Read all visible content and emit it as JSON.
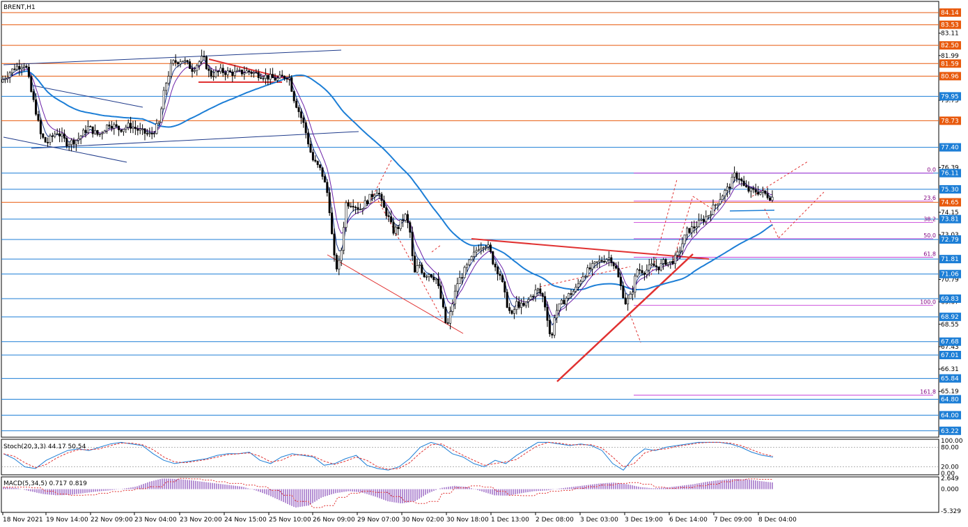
{
  "chart_data": {
    "type": "candlestick",
    "symbol_label": "BRENT,H1",
    "y_axis": {
      "range": [
        62.9,
        84.7
      ],
      "ticks": [
        "84.14",
        "83.53",
        "83.11",
        "82.50",
        "81.99",
        "81.59",
        "80.96",
        "79.95",
        "79.75",
        "78.73",
        "77.40",
        "76.39",
        "76.11",
        "75.30",
        "74.65",
        "74.15",
        "73.81",
        "73.03",
        "72.79",
        "71.81",
        "71.06",
        "70.79",
        "69.83",
        "69.67",
        "68.92",
        "68.55",
        "67.68",
        "67.43",
        "67.01",
        "66.31",
        "65.84",
        "65.19",
        "64.80",
        "64.00",
        "63.22"
      ],
      "tick_values": [
        84.14,
        83.53,
        83.11,
        82.5,
        81.99,
        81.59,
        80.96,
        79.95,
        79.75,
        78.73,
        77.4,
        76.39,
        76.11,
        75.3,
        74.65,
        74.15,
        73.81,
        73.03,
        72.79,
        71.81,
        71.06,
        70.79,
        69.83,
        69.67,
        68.92,
        68.55,
        67.68,
        67.43,
        67.01,
        66.31,
        65.84,
        65.19,
        64.8,
        64.0,
        63.22
      ],
      "highlighted": [
        {
          "label": "84.14",
          "value": 84.14,
          "color": "#e8590c"
        },
        {
          "label": "83.53",
          "value": 83.53,
          "color": "#e8590c"
        },
        {
          "label": "82.50",
          "value": 82.5,
          "color": "#e8590c"
        },
        {
          "label": "81.59",
          "value": 81.59,
          "color": "#e8590c"
        },
        {
          "label": "80.96",
          "value": 80.96,
          "color": "#e8590c"
        },
        {
          "label": "79.95",
          "value": 79.95,
          "color": "#1c7ed6"
        },
        {
          "label": "78.73",
          "value": 78.73,
          "color": "#e8590c"
        },
        {
          "label": "77.40",
          "value": 77.4,
          "color": "#1c7ed6"
        },
        {
          "label": "76.11",
          "value": 76.11,
          "color": "#1c7ed6"
        },
        {
          "label": "75.30",
          "value": 75.3,
          "color": "#1c7ed6"
        },
        {
          "label": "74.65",
          "value": 74.65,
          "color": "#e8590c"
        },
        {
          "label": "73.81",
          "value": 73.81,
          "color": "#1c7ed6"
        },
        {
          "label": "72.79",
          "value": 72.79,
          "color": "#1c7ed6"
        },
        {
          "label": "71.81",
          "value": 71.81,
          "color": "#1c7ed6"
        },
        {
          "label": "71.06",
          "value": 71.06,
          "color": "#1c7ed6"
        },
        {
          "label": "69.83",
          "value": 69.83,
          "color": "#1c7ed6"
        },
        {
          "label": "68.92",
          "value": 68.92,
          "color": "#1c7ed6"
        },
        {
          "label": "67.68",
          "value": 67.68,
          "color": "#1c7ed6"
        },
        {
          "label": "67.01",
          "value": 67.01,
          "color": "#1c7ed6"
        },
        {
          "label": "65.84",
          "value": 65.84,
          "color": "#1c7ed6"
        },
        {
          "label": "64.80",
          "value": 64.8,
          "color": "#1c7ed6"
        },
        {
          "label": "64.00",
          "value": 64.0,
          "color": "#1c7ed6"
        },
        {
          "label": "63.22",
          "value": 63.22,
          "color": "#1c7ed6"
        }
      ]
    },
    "x_axis": {
      "tick_labels": [
        "18 Nov 2021",
        "19 Nov 14:00",
        "22 Nov 09:00",
        "23 Nov 04:00",
        "23 Nov 20:00",
        "24 Nov 15:00",
        "25 Nov 10:00",
        "26 Nov 09:00",
        "29 Nov 07:00",
        "30 Nov 02:00",
        "30 Nov 18:00",
        "1 Dec 13:00",
        "2 Dec 08:00",
        "3 Dec 03:00",
        "3 Dec 19:00",
        "6 Dec 14:00",
        "7 Dec 09:00",
        "8 Dec 04:00"
      ]
    },
    "price_path": [
      [
        0,
        80.5
      ],
      [
        10,
        80.9
      ],
      [
        25,
        81.4
      ],
      [
        40,
        81.6
      ],
      [
        48,
        80.2
      ],
      [
        55,
        79.2
      ],
      [
        62,
        78.0
      ],
      [
        70,
        77.6
      ],
      [
        85,
        78.2
      ],
      [
        100,
        77.6
      ],
      [
        115,
        77.8
      ],
      [
        130,
        78.4
      ],
      [
        145,
        78.0
      ],
      [
        160,
        78.6
      ],
      [
        175,
        78.3
      ],
      [
        190,
        78.5
      ],
      [
        205,
        78.2
      ],
      [
        220,
        78.0
      ],
      [
        232,
        78.6
      ],
      [
        240,
        80.4
      ],
      [
        250,
        81.6
      ],
      [
        265,
        81.8
      ],
      [
        280,
        81.3
      ],
      [
        295,
        81.9
      ],
      [
        305,
        81.0
      ],
      [
        320,
        81.2
      ],
      [
        340,
        81.1
      ],
      [
        360,
        81.2
      ],
      [
        380,
        81.0
      ],
      [
        400,
        80.8
      ],
      [
        418,
        81.0
      ],
      [
        425,
        79.9
      ],
      [
        440,
        78.5
      ],
      [
        452,
        76.8
      ],
      [
        465,
        76.2
      ],
      [
        475,
        74.9
      ],
      [
        480,
        73.0
      ],
      [
        485,
        71.3
      ],
      [
        492,
        71.7
      ],
      [
        500,
        74.6
      ],
      [
        510,
        74.6
      ],
      [
        520,
        74.3
      ],
      [
        530,
        74.7
      ],
      [
        540,
        75.1
      ],
      [
        546,
        75.3
      ],
      [
        552,
        74.5
      ],
      [
        560,
        74.0
      ],
      [
        568,
        73.2
      ],
      [
        575,
        73.4
      ],
      [
        585,
        74.0
      ],
      [
        592,
        73.2
      ],
      [
        598,
        71.0
      ],
      [
        605,
        71.6
      ],
      [
        612,
        71.0
      ],
      [
        620,
        71.1
      ],
      [
        630,
        70.8
      ],
      [
        638,
        69.6
      ],
      [
        645,
        68.3
      ],
      [
        652,
        69.4
      ],
      [
        660,
        70.6
      ],
      [
        670,
        71.2
      ],
      [
        680,
        71.8
      ],
      [
        690,
        72.4
      ],
      [
        700,
        72.6
      ],
      [
        706,
        72.3
      ],
      [
        712,
        71.6
      ],
      [
        722,
        71.0
      ],
      [
        730,
        69.7
      ],
      [
        738,
        68.9
      ],
      [
        745,
        69.6
      ],
      [
        755,
        69.4
      ],
      [
        765,
        69.9
      ],
      [
        775,
        70.3
      ],
      [
        783,
        69.9
      ],
      [
        788,
        69.2
      ],
      [
        795,
        67.6
      ],
      [
        800,
        69.1
      ],
      [
        810,
        69.6
      ],
      [
        820,
        70.0
      ],
      [
        830,
        70.3
      ],
      [
        840,
        71.0
      ],
      [
        850,
        71.3
      ],
      [
        860,
        71.6
      ],
      [
        870,
        71.8
      ],
      [
        880,
        71.9
      ],
      [
        888,
        71.3
      ],
      [
        895,
        70.4
      ],
      [
        902,
        69.6
      ],
      [
        910,
        70.0
      ],
      [
        918,
        71.3
      ],
      [
        930,
        71.2
      ],
      [
        940,
        71.5
      ],
      [
        950,
        71.4
      ],
      [
        958,
        71.7
      ],
      [
        965,
        71.6
      ],
      [
        975,
        71.9
      ],
      [
        982,
        72.5
      ],
      [
        990,
        73.2
      ],
      [
        1000,
        73.4
      ],
      [
        1010,
        73.7
      ],
      [
        1020,
        74.0
      ],
      [
        1030,
        74.5
      ],
      [
        1040,
        75.0
      ],
      [
        1050,
        75.4
      ],
      [
        1058,
        76.0
      ],
      [
        1065,
        75.9
      ],
      [
        1072,
        75.4
      ],
      [
        1080,
        75.2
      ],
      [
        1090,
        75.2
      ],
      [
        1100,
        75.1
      ],
      [
        1110,
        74.9
      ]
    ],
    "candle_spacing_px": 3.4,
    "moving_averages": [
      {
        "color": "#1c7ed6",
        "smoothing": "slow"
      },
      {
        "color": "#1e3a8a",
        "smoothing": "fast"
      },
      {
        "color": "#6b21a8",
        "smoothing": "medium"
      }
    ],
    "fibonacci": {
      "levels": [
        {
          "label": "0.0",
          "value": 76.11
        },
        {
          "label": "23.6",
          "value": 74.71
        },
        {
          "label": "38.2",
          "value": 73.64
        },
        {
          "label": "50.0",
          "value": 72.83
        },
        {
          "label": "61.8",
          "value": 71.9
        },
        {
          "label": "100.0",
          "value": 69.5
        },
        {
          "label": "161.8",
          "value": 65.0
        }
      ]
    },
    "stochastic": {
      "label": "Stoch(20,3,3) 44.17 50.54",
      "ticks": [
        "100.00",
        "80.00",
        "20.00",
        "0.00"
      ],
      "tick_values": [
        100,
        80,
        20,
        0
      ],
      "main": [
        60,
        45,
        20,
        15,
        40,
        55,
        70,
        75,
        70,
        80,
        90,
        95,
        90,
        85,
        60,
        40,
        30,
        35,
        40,
        45,
        55,
        60,
        60,
        65,
        40,
        30,
        50,
        60,
        55,
        50,
        25,
        30,
        45,
        55,
        25,
        15,
        10,
        20,
        45,
        80,
        95,
        85,
        60,
        50,
        30,
        20,
        40,
        30,
        55,
        75,
        95,
        95,
        90,
        85,
        90,
        85,
        70,
        30,
        10,
        50,
        75,
        70,
        80,
        85,
        90,
        95,
        95,
        95,
        90,
        80,
        65,
        55,
        50
      ]
    },
    "macd": {
      "label": "MACD(5,34,5) 0.717 0.819",
      "ticks": [
        "2.649",
        "0.000",
        "-5.329"
      ],
      "tick_values": [
        2.649,
        0,
        -5.329
      ],
      "histogram": [
        0.5,
        0.3,
        -0.5,
        -1.2,
        -1.5,
        -1.4,
        -1.0,
        -0.6,
        -0.3,
        0.1,
        0.6,
        1.8,
        2.6,
        2.5,
        2.2,
        1.8,
        1.4,
        1.0,
        0.6,
        -0.3,
        -1.5,
        -3.0,
        -4.5,
        -4.0,
        -2.0,
        -1.0,
        -0.5,
        -0.8,
        -1.8,
        -3.0,
        -3.5,
        -3.0,
        -1.0,
        0.3,
        0.8,
        0.5,
        -0.5,
        -1.5,
        -1.6,
        -1.0,
        -0.5,
        -0.3,
        0.2,
        0.6,
        1.0,
        1.4,
        1.6,
        1.2,
        0.5,
        0.2,
        0.4,
        0.8,
        1.2,
        1.8,
        2.2,
        2.5,
        2.4,
        2.0,
        1.6
      ]
    }
  }
}
